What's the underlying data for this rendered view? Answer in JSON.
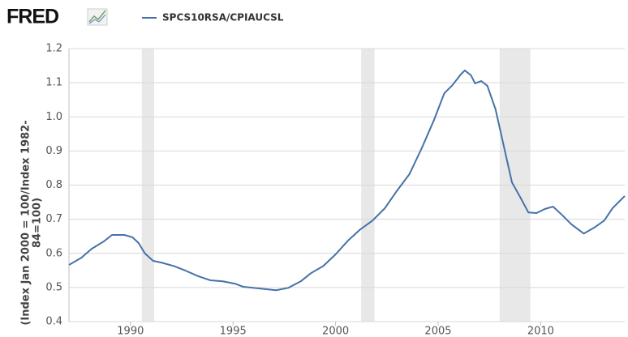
{
  "chart_data": {
    "type": "line",
    "logo": "FRED",
    "ylabel": [
      "(Index Jan 2000 = 100/Index 1982-",
      "84=100)"
    ],
    "x": [
      1987.0,
      1987.6,
      1988.1,
      1988.7,
      1989.1,
      1989.7,
      1990.1,
      1990.4,
      1990.7,
      1991.1,
      1991.5,
      1992.1,
      1992.7,
      1993.3,
      1993.9,
      1994.5,
      1995.1,
      1995.5,
      1996.3,
      1997.1,
      1997.7,
      1998.3,
      1998.8,
      1999.4,
      2000.0,
      2000.6,
      2001.2,
      2001.8,
      2002.4,
      2003.0,
      2003.6,
      2004.2,
      2004.8,
      2005.3,
      2005.7,
      2006.1,
      2006.3,
      2006.6,
      2006.8,
      2007.1,
      2007.4,
      2007.8,
      2008.2,
      2008.6,
      2009.0,
      2009.4,
      2009.8,
      2010.2,
      2010.6,
      2011.0,
      2011.5,
      2012.1,
      2012.6,
      2013.1,
      2013.5,
      2014.1
    ],
    "series": [
      {
        "name": "SPCS10RSA/CPIAUCSL",
        "color": "#4572a7",
        "values": [
          0.566,
          0.587,
          0.613,
          0.635,
          0.654,
          0.654,
          0.647,
          0.63,
          0.6,
          0.578,
          0.573,
          0.563,
          0.549,
          0.533,
          0.521,
          0.518,
          0.511,
          0.502,
          0.497,
          0.492,
          0.499,
          0.518,
          0.542,
          0.563,
          0.597,
          0.637,
          0.67,
          0.696,
          0.732,
          0.784,
          0.832,
          0.908,
          0.991,
          1.069,
          1.093,
          1.124,
          1.136,
          1.122,
          1.098,
          1.105,
          1.091,
          1.022,
          0.915,
          0.808,
          0.765,
          0.72,
          0.718,
          0.73,
          0.737,
          0.715,
          0.685,
          0.658,
          0.675,
          0.696,
          0.732,
          0.768
        ]
      }
    ],
    "shaded_periods": [
      [
        1990.55,
        1991.15
      ],
      [
        2001.25,
        2001.9
      ],
      [
        2008.0,
        2009.5
      ]
    ],
    "shade_color": "#e8e8e8",
    "xlim": [
      1987.0,
      2014.1
    ],
    "xticks": [
      1990,
      1995,
      2000,
      2005,
      2010
    ],
    "ylim": [
      0.4,
      1.2
    ],
    "yticks": [
      0.4,
      0.5,
      0.6,
      0.7,
      0.8,
      0.9,
      {
        "value": 1,
        "label": "1.0"
      },
      1.1,
      1.2
    ],
    "grid": true
  }
}
